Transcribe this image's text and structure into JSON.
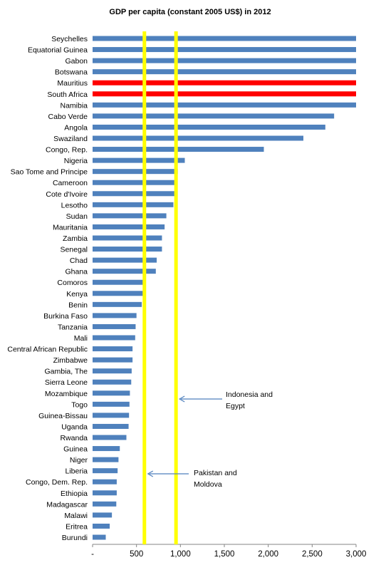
{
  "chart_data": {
    "type": "bar",
    "orientation": "horizontal",
    "title": "GDP per capita (constant 2005 US$) in 2012",
    "categories": [
      "Seychelles",
      "Equatorial Guinea",
      "Gabon",
      "Botswana",
      "Mauritius",
      "South Africa",
      "Namibia",
      "Cabo Verde",
      "Angola",
      "Swaziland",
      "Congo, Rep.",
      "Nigeria",
      "Sao Tome and Principe",
      "Cameroon",
      "Cote d'Ivoire",
      "Lesotho",
      "Sudan",
      "Mauritania",
      "Zambia",
      "Senegal",
      "Chad",
      "Ghana",
      "Comoros",
      "Kenya",
      "Benin",
      "Burkina Faso",
      "Tanzania",
      "Mali",
      "Central African Republic",
      "Zimbabwe",
      "Gambia, The",
      "Sierra Leone",
      "Mozambique",
      "Togo",
      "Guinea-Bissau",
      "Uganda",
      "Rwanda",
      "Guinea",
      "Niger",
      "Liberia",
      "Congo, Dem. Rep.",
      "Ethiopia",
      "Madagascar",
      "Malawi",
      "Eritrea",
      "Burundi"
    ],
    "values": [
      3000,
      3000,
      3000,
      3000,
      3000,
      3000,
      3000,
      2750,
      2650,
      2400,
      1950,
      1050,
      970,
      960,
      950,
      920,
      840,
      820,
      790,
      790,
      730,
      720,
      600,
      600,
      560,
      500,
      490,
      485,
      455,
      455,
      445,
      440,
      425,
      420,
      415,
      410,
      385,
      310,
      295,
      285,
      275,
      275,
      270,
      220,
      195,
      150
    ],
    "highlight_color": "#ff0000",
    "bar_color": "#4f81bd",
    "highlighted_categories": [
      "Mauritius",
      "South Africa"
    ],
    "xlim": [
      0,
      3000
    ],
    "x_ticks": [
      0,
      500,
      1000,
      1500,
      2000,
      2500,
      3000
    ],
    "x_tick_labels": [
      "-",
      "500",
      "1,000",
      "1,500",
      "2,000",
      "2,500",
      "3,000"
    ],
    "grid": false,
    "reference_lines": [
      {
        "x": 590,
        "color": "#ffff00"
      },
      {
        "x": 950,
        "color": "#ffff00"
      }
    ],
    "annotations": [
      {
        "lines": [
          "Indonesia and",
          "Egypt"
        ],
        "points_to_x": 950
      },
      {
        "lines": [
          "Pakistan and",
          "Moldova"
        ],
        "points_to_x": 590
      }
    ],
    "arrow_color": "#4f81bd"
  }
}
